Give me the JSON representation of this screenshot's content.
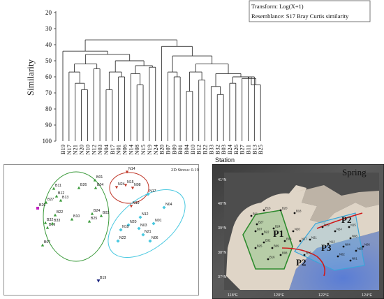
{
  "dendrogram": {
    "transform_label": "Transform: Log(X+1)",
    "resemblance_label": "Resemblance: S17 Bray Curtis similarity",
    "y_axis_title": "Similarity",
    "x_axis_title": "Station",
    "y_ticks": [
      "20",
      "30",
      "40",
      "50",
      "60",
      "70",
      "80",
      "90",
      "100"
    ],
    "stations": [
      "B19",
      "N17",
      "N21",
      "N20",
      "N10",
      "N12",
      "N03",
      "N04",
      "B17",
      "N01",
      "N06",
      "N14",
      "N08",
      "N15",
      "N19",
      "N24",
      "B20",
      "B07",
      "B09",
      "B01",
      "B04",
      "B10",
      "B12",
      "B22",
      "B33",
      "B32",
      "B03",
      "B24",
      "B26",
      "B27",
      "B11",
      "B13",
      "B25"
    ]
  },
  "mds": {
    "stress_label": "2D Stress: 0.19",
    "points": [
      {
        "id": "B01",
        "group": "green"
      },
      {
        "id": "B03",
        "group": "green"
      },
      {
        "id": "B04",
        "group": "green"
      },
      {
        "id": "B07",
        "group": "green"
      },
      {
        "id": "B09",
        "group": "green"
      },
      {
        "id": "B10",
        "group": "green"
      },
      {
        "id": "B11",
        "group": "green"
      },
      {
        "id": "B12",
        "group": "green"
      },
      {
        "id": "B13",
        "group": "green"
      },
      {
        "id": "B22",
        "group": "green"
      },
      {
        "id": "B24",
        "group": "green"
      },
      {
        "id": "B25",
        "group": "green"
      },
      {
        "id": "B26",
        "group": "green"
      },
      {
        "id": "B27",
        "group": "green"
      },
      {
        "id": "B32",
        "group": "green"
      },
      {
        "id": "B33",
        "group": "green"
      },
      {
        "id": "B19",
        "group": "navy"
      },
      {
        "id": "B20",
        "group": "magenta"
      },
      {
        "id": "N14",
        "group": "red"
      },
      {
        "id": "N15",
        "group": "red"
      },
      {
        "id": "N24",
        "group": "red"
      },
      {
        "id": "N08",
        "group": "red"
      },
      {
        "id": "N19",
        "group": "red"
      },
      {
        "id": "N17",
        "group": "cyan"
      },
      {
        "id": "N04",
        "group": "cyan"
      },
      {
        "id": "N12",
        "group": "cyan"
      },
      {
        "id": "N20",
        "group": "cyan"
      },
      {
        "id": "N03",
        "group": "cyan"
      },
      {
        "id": "N01",
        "group": "cyan"
      },
      {
        "id": "N10",
        "group": "cyan"
      },
      {
        "id": "N21",
        "group": "cyan"
      },
      {
        "id": "N06",
        "group": "cyan"
      },
      {
        "id": "N22",
        "group": "cyan"
      }
    ]
  },
  "map": {
    "title": "Spring",
    "region_labels": [
      "P1",
      "P2",
      "P3",
      "P2"
    ],
    "lat_labels": [
      "41°N",
      "40°N",
      "39°N",
      "38°N",
      "37°N"
    ],
    "lon_labels": [
      "118°E",
      "120°E",
      "122°E",
      "124°E"
    ]
  },
  "colors": {
    "green": "#3a9a3a",
    "red": "#c0392b",
    "cyan": "#48c8e0",
    "navy": "#1a237e",
    "magenta": "#c020c0",
    "sea_blue": "#5a7fdc",
    "land": "#eadfd3"
  }
}
